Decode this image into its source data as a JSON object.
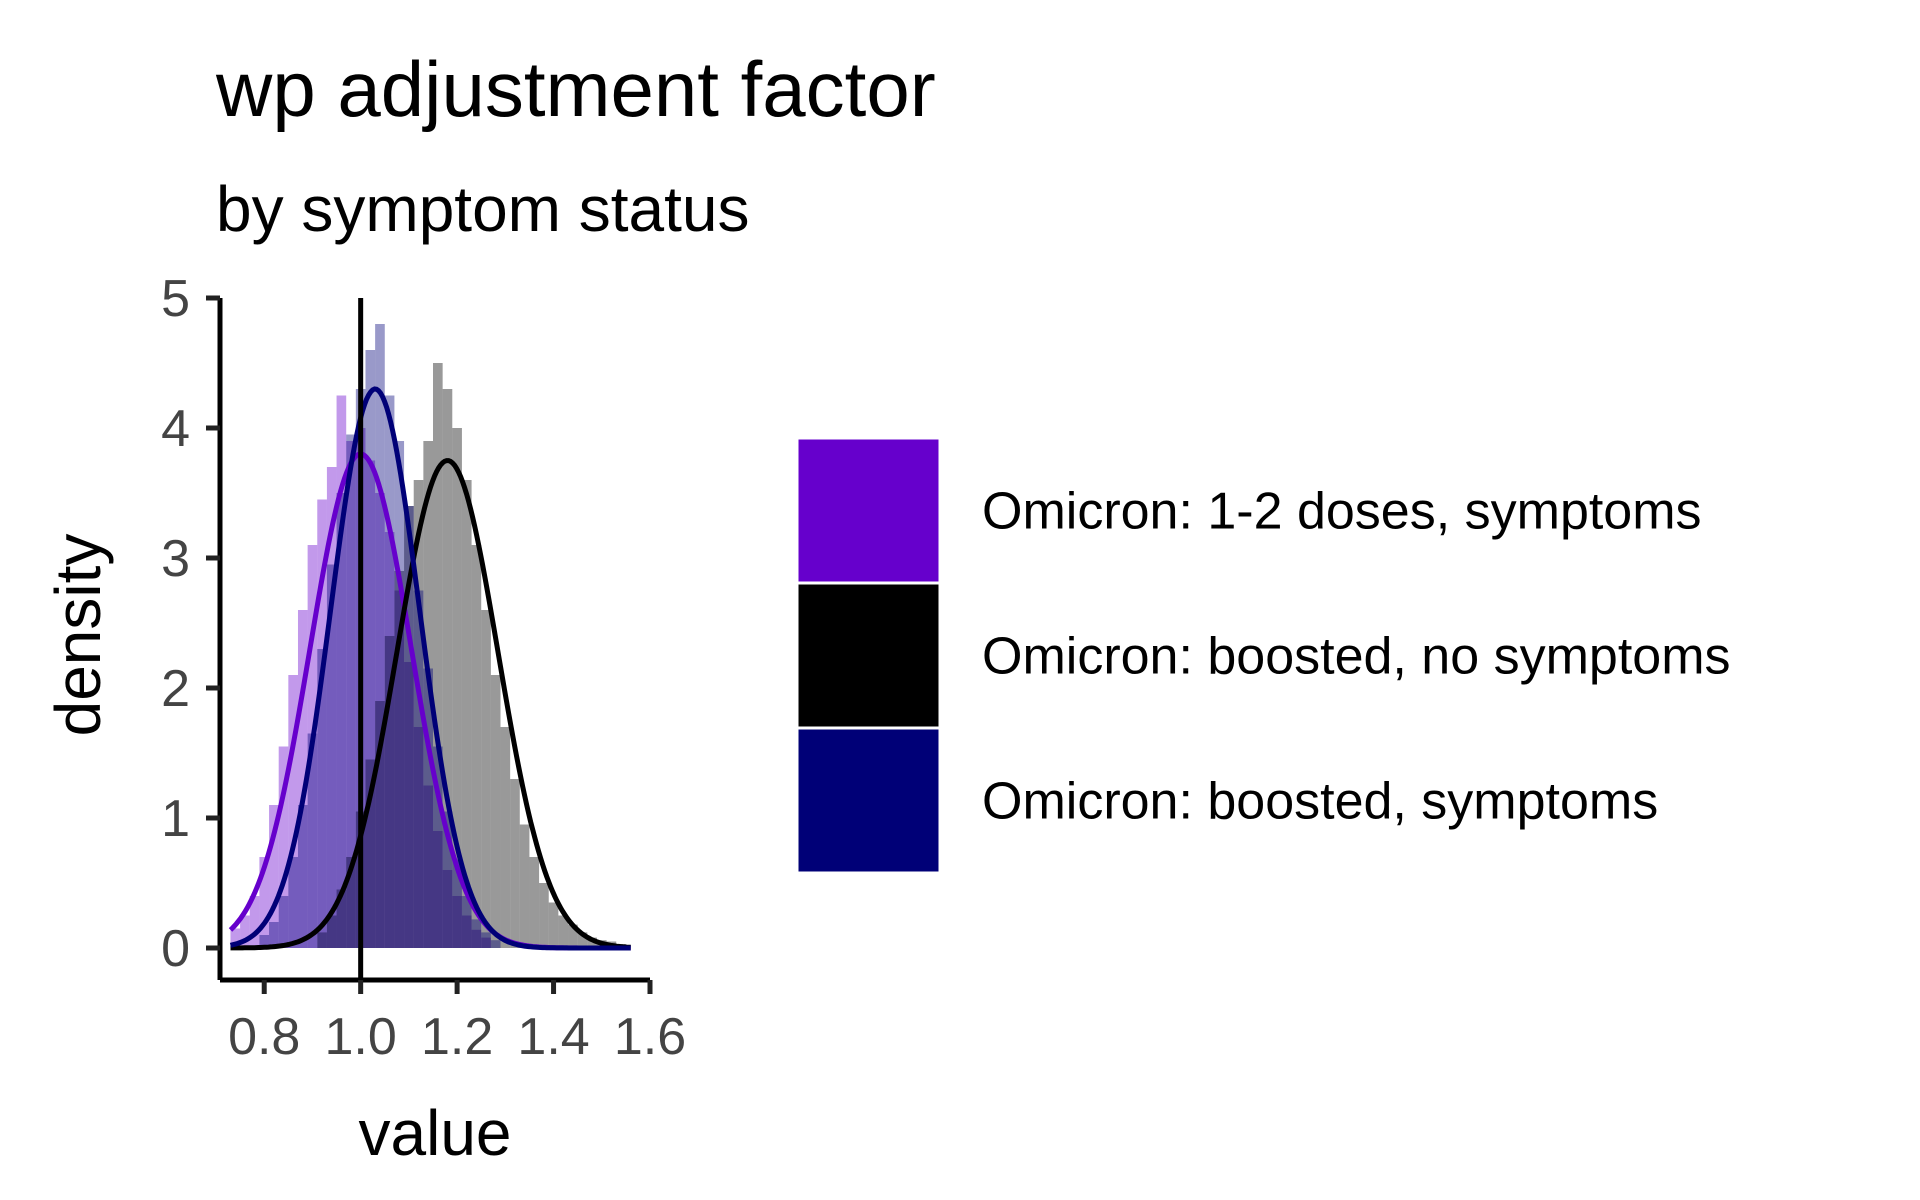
{
  "chart_data": {
    "type": "histogram-density",
    "title": "wp adjustment factor",
    "subtitle": "by symptom status",
    "xlabel": "value",
    "ylabel": "density",
    "xlim": [
      0.7,
      1.6
    ],
    "ylim": [
      0,
      5
    ],
    "x_ticks": [
      0.8,
      1.0,
      1.2,
      1.4,
      1.6
    ],
    "x_tick_labels": [
      "0.8",
      "1.0",
      "1.2",
      "1.4",
      "1.6"
    ],
    "y_ticks": [
      0,
      1,
      2,
      3,
      4,
      5
    ],
    "y_tick_labels": [
      "0",
      "1",
      "2",
      "3",
      "4",
      "5"
    ],
    "reference_line_x": 1.0,
    "grid": false,
    "legend_position": "right",
    "series": [
      {
        "name": "Omicron: 1-2 doses, symptoms",
        "color": "#6600CC",
        "density": {
          "mean": 1.0,
          "sd": 0.105,
          "peak": 3.8
        },
        "histogram": [
          [
            0.74,
            0.15
          ],
          [
            0.76,
            0.25
          ],
          [
            0.78,
            0.4
          ],
          [
            0.8,
            0.7
          ],
          [
            0.82,
            1.1
          ],
          [
            0.84,
            1.55
          ],
          [
            0.86,
            2.1
          ],
          [
            0.88,
            2.6
          ],
          [
            0.9,
            3.1
          ],
          [
            0.92,
            3.45
          ],
          [
            0.94,
            3.7
          ],
          [
            0.96,
            4.25
          ],
          [
            0.98,
            3.9
          ],
          [
            1.0,
            4.0
          ],
          [
            1.02,
            3.75
          ],
          [
            1.04,
            3.5
          ],
          [
            1.06,
            3.2
          ],
          [
            1.08,
            2.75
          ],
          [
            1.1,
            2.2
          ],
          [
            1.12,
            1.7
          ],
          [
            1.14,
            1.25
          ],
          [
            1.16,
            0.9
          ],
          [
            1.18,
            0.6
          ],
          [
            1.2,
            0.4
          ],
          [
            1.22,
            0.25
          ],
          [
            1.24,
            0.14
          ],
          [
            1.26,
            0.08
          ]
        ]
      },
      {
        "name": "Omicron: boosted, no symptoms",
        "color": "#000000",
        "density": {
          "mean": 1.18,
          "sd": 0.105,
          "peak": 3.75
        },
        "histogram": [
          [
            0.92,
            0.12
          ],
          [
            0.94,
            0.25
          ],
          [
            0.96,
            0.45
          ],
          [
            0.98,
            0.7
          ],
          [
            1.0,
            1.05
          ],
          [
            1.02,
            1.45
          ],
          [
            1.04,
            1.9
          ],
          [
            1.06,
            2.4
          ],
          [
            1.08,
            2.9
          ],
          [
            1.1,
            3.4
          ],
          [
            1.12,
            3.6
          ],
          [
            1.14,
            3.9
          ],
          [
            1.16,
            4.5
          ],
          [
            1.18,
            4.3
          ],
          [
            1.2,
            4.0
          ],
          [
            1.22,
            3.6
          ],
          [
            1.24,
            3.1
          ],
          [
            1.26,
            2.6
          ],
          [
            1.28,
            2.1
          ],
          [
            1.3,
            1.7
          ],
          [
            1.32,
            1.3
          ],
          [
            1.34,
            0.95
          ],
          [
            1.36,
            0.7
          ],
          [
            1.38,
            0.5
          ],
          [
            1.4,
            0.35
          ],
          [
            1.42,
            0.25
          ],
          [
            1.44,
            0.18
          ],
          [
            1.46,
            0.12
          ],
          [
            1.48,
            0.08
          ],
          [
            1.5,
            0.06
          ],
          [
            1.52,
            0.05
          ],
          [
            1.54,
            0.03
          ]
        ]
      },
      {
        "name": "Omicron: boosted, symptoms",
        "color": "#000077",
        "density": {
          "mean": 1.03,
          "sd": 0.092,
          "peak": 4.3
        },
        "histogram": [
          [
            0.8,
            0.1
          ],
          [
            0.82,
            0.2
          ],
          [
            0.84,
            0.4
          ],
          [
            0.86,
            0.7
          ],
          [
            0.88,
            1.1
          ],
          [
            0.9,
            1.65
          ],
          [
            0.92,
            2.3
          ],
          [
            0.94,
            2.95
          ],
          [
            0.96,
            3.5
          ],
          [
            0.98,
            3.95
          ],
          [
            1.0,
            4.3
          ],
          [
            1.02,
            4.6
          ],
          [
            1.04,
            4.8
          ],
          [
            1.06,
            4.25
          ],
          [
            1.08,
            3.9
          ],
          [
            1.1,
            3.4
          ],
          [
            1.12,
            2.75
          ],
          [
            1.14,
            2.15
          ],
          [
            1.16,
            1.55
          ],
          [
            1.18,
            1.05
          ],
          [
            1.2,
            0.68
          ],
          [
            1.22,
            0.4
          ],
          [
            1.24,
            0.22
          ],
          [
            1.26,
            0.12
          ],
          [
            1.28,
            0.06
          ]
        ]
      }
    ]
  }
}
